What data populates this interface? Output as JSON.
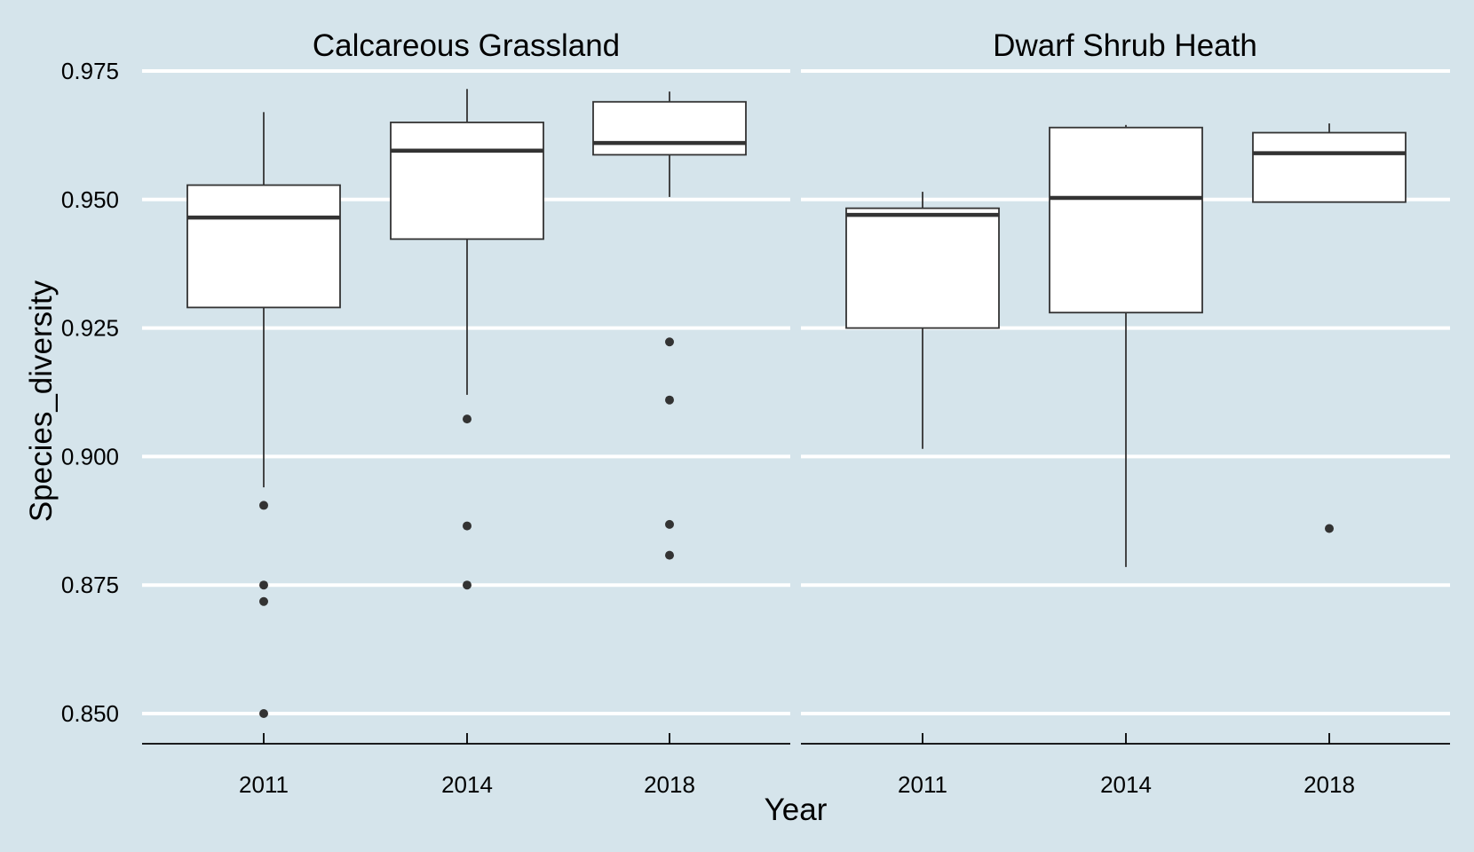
{
  "chart_data": {
    "type": "boxplot",
    "xlabel": "Year",
    "ylabel": "Species_diversity",
    "ylim": [
      0.844,
      0.976
    ],
    "yticks": [
      0.85,
      0.875,
      0.9,
      0.925,
      0.95,
      0.975
    ],
    "ytick_labels": [
      "0.850",
      "0.875",
      "0.900",
      "0.925",
      "0.950",
      "0.975"
    ],
    "categories": [
      "2011",
      "2014",
      "2018"
    ],
    "grid": true,
    "facets": [
      {
        "title": "Calcareous Grassland",
        "boxes": [
          {
            "category": "2011",
            "whisker_low": 0.894,
            "q1": 0.929,
            "median": 0.9465,
            "q3": 0.9528,
            "whisker_high": 0.967,
            "outliers": [
              0.8905,
              0.875,
              0.8718,
              0.85
            ]
          },
          {
            "category": "2014",
            "whisker_low": 0.912,
            "q1": 0.9423,
            "median": 0.9595,
            "q3": 0.965,
            "whisker_high": 0.9715,
            "outliers": [
              0.9073,
              0.8865,
              0.875
            ]
          },
          {
            "category": "2018",
            "whisker_low": 0.9505,
            "q1": 0.9587,
            "median": 0.961,
            "q3": 0.969,
            "whisker_high": 0.971,
            "outliers": [
              0.9223,
              0.911,
              0.8868,
              0.8808
            ]
          }
        ]
      },
      {
        "title": "Dwarf Shrub Heath",
        "boxes": [
          {
            "category": "2011",
            "whisker_low": 0.9015,
            "q1": 0.925,
            "median": 0.947,
            "q3": 0.9483,
            "whisker_high": 0.9515,
            "outliers": []
          },
          {
            "category": "2014",
            "whisker_low": 0.8785,
            "q1": 0.928,
            "median": 0.9503,
            "q3": 0.964,
            "whisker_high": 0.9645,
            "outliers": []
          },
          {
            "category": "2018",
            "whisker_low": 0.9495,
            "q1": 0.9495,
            "median": 0.959,
            "q3": 0.963,
            "whisker_high": 0.9648,
            "outliers": [
              0.886
            ]
          }
        ]
      }
    ]
  }
}
